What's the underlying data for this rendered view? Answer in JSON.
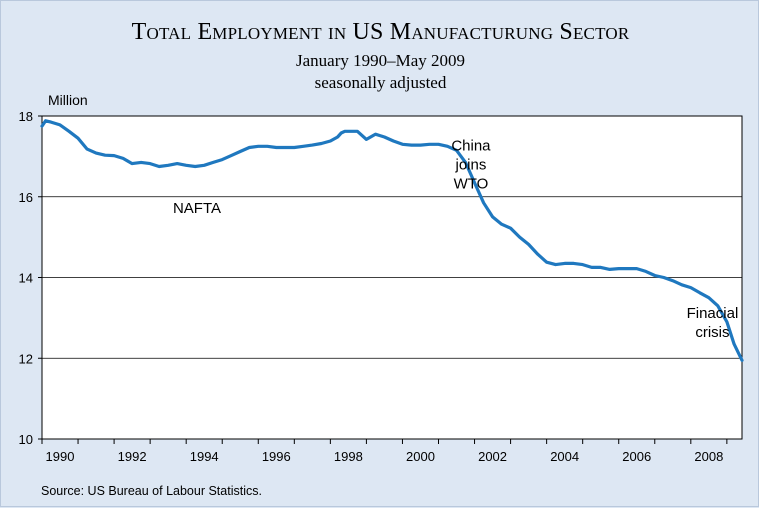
{
  "chart_data": {
    "type": "line",
    "title": "Total Employment in US Manufacturung Sector",
    "subtitle": [
      "January 1990–May 2009",
      "seasonally adjusted"
    ],
    "unit_label": "Million",
    "source": "Source: US Bureau of Labour Statistics.",
    "ylim": [
      10,
      18
    ],
    "yticks": [
      10,
      12,
      14,
      16,
      18
    ],
    "xlim": [
      1990,
      2009.42
    ],
    "xtick_labels": [
      "1990",
      "1992",
      "1994",
      "1996",
      "1998",
      "2000",
      "2002",
      "2004",
      "2006",
      "2008"
    ],
    "xtick_values": [
      1990.5,
      1992.5,
      1994.5,
      1996.5,
      1998.5,
      2000.5,
      2002.5,
      2004.5,
      2006.5,
      2008.5
    ],
    "grid": "horizontal",
    "line_color": "#1f78bf",
    "series": [
      {
        "x": [
          1990.0,
          1990.1,
          1990.25,
          1990.5,
          1990.75,
          1991.0,
          1991.25,
          1991.5,
          1991.75,
          1992.0,
          1992.25,
          1992.5,
          1992.75,
          1993.0,
          1993.25,
          1993.5,
          1993.75,
          1994.0,
          1994.25,
          1994.5,
          1994.75,
          1995.0,
          1995.25,
          1995.5,
          1995.75,
          1996.0,
          1996.25,
          1996.5,
          1996.75,
          1997.0,
          1997.25,
          1997.5,
          1997.75,
          1998.0,
          1998.2,
          1998.3,
          1998.4,
          1998.5,
          1998.75,
          1999.0,
          1999.25,
          1999.5,
          1999.75,
          2000.0,
          2000.25,
          2000.5,
          2000.75,
          2001.0,
          2001.25,
          2001.5,
          2001.75,
          2002.0,
          2002.25,
          2002.5,
          2002.75,
          2003.0,
          2003.25,
          2003.5,
          2003.75,
          2004.0,
          2004.25,
          2004.5,
          2004.75,
          2005.0,
          2005.25,
          2005.5,
          2005.75,
          2006.0,
          2006.25,
          2006.5,
          2006.75,
          2007.0,
          2007.25,
          2007.5,
          2007.75,
          2008.0,
          2008.25,
          2008.5,
          2008.75,
          2009.0,
          2009.2,
          2009.42
        ],
        "values": [
          17.75,
          17.88,
          17.85,
          17.78,
          17.62,
          17.45,
          17.18,
          17.08,
          17.03,
          17.02,
          16.95,
          16.82,
          16.85,
          16.82,
          16.75,
          16.78,
          16.82,
          16.78,
          16.75,
          16.78,
          16.85,
          16.92,
          17.02,
          17.12,
          17.22,
          17.25,
          17.25,
          17.22,
          17.22,
          17.22,
          17.25,
          17.28,
          17.32,
          17.38,
          17.48,
          17.58,
          17.62,
          17.62,
          17.62,
          17.42,
          17.55,
          17.48,
          17.38,
          17.3,
          17.28,
          17.28,
          17.3,
          17.3,
          17.25,
          17.15,
          16.85,
          16.35,
          15.85,
          15.5,
          15.32,
          15.22,
          15.0,
          14.82,
          14.58,
          14.38,
          14.32,
          14.35,
          14.35,
          14.32,
          14.25,
          14.25,
          14.2,
          14.22,
          14.22,
          14.22,
          14.15,
          14.05,
          14.0,
          13.92,
          13.82,
          13.75,
          13.62,
          13.5,
          13.3,
          12.9,
          12.35,
          11.95
        ]
      }
    ],
    "annotations": [
      {
        "lines": [
          "NAFTA"
        ],
        "x": 1994.3,
        "y": 15.6
      },
      {
        "lines": [
          "China",
          "joins",
          "WTO"
        ],
        "x": 2001.9,
        "y": 17.15
      },
      {
        "lines": [
          "Finacial",
          "crisis"
        ],
        "x": 2008.6,
        "y": 13.0
      }
    ]
  }
}
